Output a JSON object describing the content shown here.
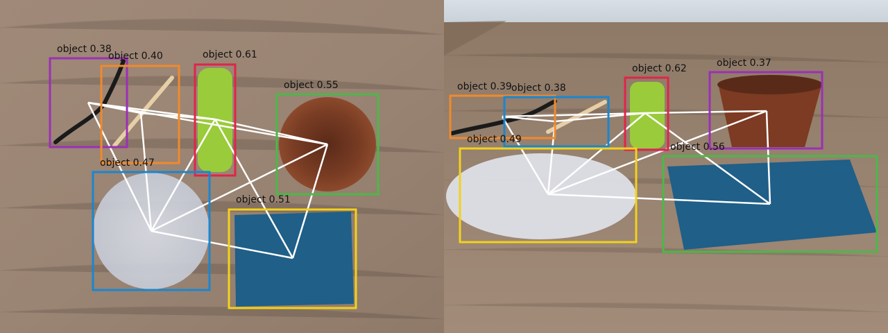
{
  "left_view": {
    "detections": [
      {
        "label": "object 0.38",
        "color": "#9b30b6"
      },
      {
        "label": "object 0.40",
        "color": "#f08a2c"
      },
      {
        "label": "object 0.61",
        "color": "#e0254a"
      },
      {
        "label": "object 0.55",
        "color": "#4cb848"
      },
      {
        "label": "object 0.47",
        "color": "#1a86d0"
      },
      {
        "label": "object 0.51",
        "color": "#f2d21a"
      }
    ]
  },
  "right_view": {
    "detections": [
      {
        "label": "object 0.39",
        "color": "#f08a2c"
      },
      {
        "label": "object 0.38",
        "color": "#1a86d0"
      },
      {
        "label": "object 0.62",
        "color": "#e0254a"
      },
      {
        "label": "object 0.37",
        "color": "#9b30b6"
      },
      {
        "label": "object 0.49",
        "color": "#f2d21a"
      },
      {
        "label": "object 0.56",
        "color": "#4cb848"
      }
    ]
  },
  "graph_edge_color": "#ffffff"
}
